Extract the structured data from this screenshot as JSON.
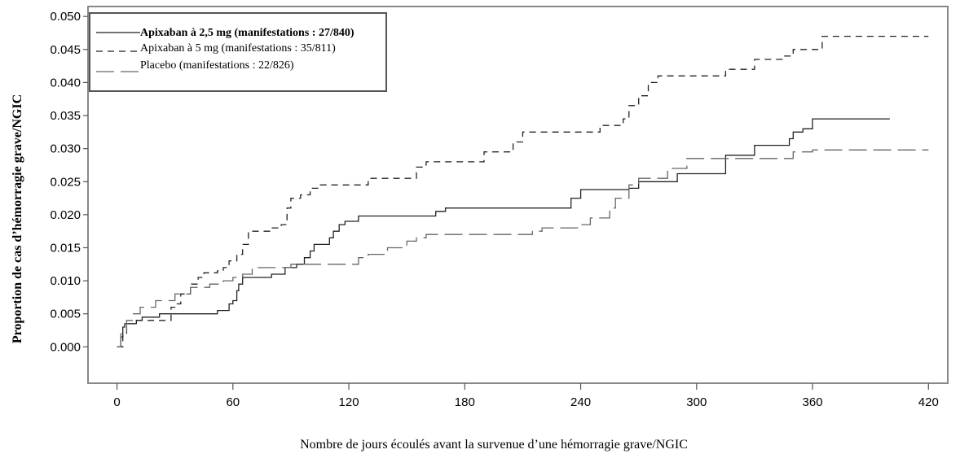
{
  "chart_data": {
    "type": "line",
    "xlabel": "Nombre de jours écoulés avant la survenue d’une hémorragie grave/NGIC",
    "ylabel": "Proportion de cas d’hémorragie grave/NGIC",
    "xlim": [
      -15,
      430
    ],
    "ylim": [
      -0.0055,
      0.0515
    ],
    "x_ticks": [
      0,
      60,
      120,
      180,
      240,
      300,
      360,
      420
    ],
    "x_tick_labels": [
      "0",
      "60",
      "120",
      "180",
      "240",
      "300",
      "360",
      "420"
    ],
    "y_ticks": [
      0.0,
      0.005,
      0.01,
      0.015,
      0.02,
      0.025,
      0.03,
      0.035,
      0.04,
      0.045,
      0.05
    ],
    "y_tick_labels": [
      "0.000",
      "0.005",
      "0.010",
      "0.015",
      "0.020",
      "0.025",
      "0.030",
      "0.035",
      "0.040",
      "0.045",
      "0.050"
    ],
    "grid": false,
    "legend_position": "top-left",
    "series": [
      {
        "name": "Apixaban à 2,5 mg (manifestations : 27/840)",
        "style": "solid",
        "color": "#222222",
        "x": [
          0,
          2,
          3,
          4,
          8,
          10,
          13,
          22,
          50,
          52,
          58,
          60,
          62,
          63,
          65,
          70,
          72,
          74,
          80,
          85,
          87,
          93,
          97,
          100,
          102,
          105,
          110,
          112,
          115,
          118,
          125,
          165,
          170,
          175,
          235,
          240,
          255,
          260,
          262,
          265,
          270,
          275,
          280,
          290,
          300,
          305,
          310,
          315,
          320,
          325,
          330,
          340,
          345,
          348,
          350,
          355,
          360,
          400
        ],
        "y": [
          0,
          0.0015,
          0.003,
          0.0035,
          0.0035,
          0.004,
          0.0045,
          0.005,
          0.005,
          0.0055,
          0.0065,
          0.007,
          0.0085,
          0.0095,
          0.0105,
          0.0105,
          0.0105,
          0.0105,
          0.011,
          0.011,
          0.012,
          0.0125,
          0.0135,
          0.0145,
          0.0155,
          0.0155,
          0.0165,
          0.0175,
          0.0185,
          0.019,
          0.0198,
          0.0205,
          0.021,
          0.021,
          0.0225,
          0.0238,
          0.0238,
          0.0238,
          0.0238,
          0.024,
          0.025,
          0.025,
          0.025,
          0.0262,
          0.0262,
          0.0262,
          0.0262,
          0.029,
          0.029,
          0.029,
          0.0305,
          0.0305,
          0.0305,
          0.0315,
          0.0325,
          0.033,
          0.0345,
          0.0345
        ]
      },
      {
        "name": "Apixaban à 5 mg (manifestations : 35/811)",
        "style": "dashed",
        "color": "#222222",
        "x": [
          0,
          3,
          5,
          10,
          15,
          20,
          28,
          30,
          33,
          38,
          42,
          45,
          48,
          52,
          55,
          58,
          62,
          65,
          68,
          70,
          75,
          80,
          85,
          88,
          90,
          92,
          95,
          100,
          105,
          130,
          140,
          150,
          155,
          160,
          185,
          190,
          205,
          210,
          215,
          250,
          262,
          265,
          270,
          275,
          280,
          285,
          315,
          330,
          345,
          350,
          365,
          400,
          420
        ],
        "y": [
          0,
          0.002,
          0.0035,
          0.004,
          0.004,
          0.004,
          0.006,
          0.0065,
          0.008,
          0.0095,
          0.0105,
          0.0112,
          0.0112,
          0.0115,
          0.012,
          0.013,
          0.014,
          0.0155,
          0.0175,
          0.0175,
          0.0175,
          0.018,
          0.0185,
          0.021,
          0.0225,
          0.0225,
          0.023,
          0.024,
          0.0245,
          0.0255,
          0.0255,
          0.0255,
          0.0272,
          0.028,
          0.028,
          0.0295,
          0.031,
          0.0325,
          0.0325,
          0.0335,
          0.0345,
          0.0365,
          0.038,
          0.04,
          0.041,
          0.041,
          0.042,
          0.0435,
          0.044,
          0.045,
          0.047,
          0.047,
          0.047
        ]
      },
      {
        "name": "Placebo (manifestations : 22/826)",
        "style": "long-dashed",
        "color": "#666666",
        "x": [
          0,
          2,
          5,
          8,
          12,
          20,
          30,
          38,
          48,
          55,
          60,
          65,
          70,
          90,
          100,
          120,
          125,
          130,
          140,
          150,
          155,
          160,
          175,
          190,
          215,
          220,
          240,
          245,
          255,
          258,
          265,
          270,
          285,
          295,
          310,
          325,
          340,
          350,
          360,
          395,
          420
        ],
        "y": [
          0,
          0.002,
          0.004,
          0.005,
          0.006,
          0.007,
          0.008,
          0.009,
          0.0095,
          0.01,
          0.0105,
          0.011,
          0.012,
          0.0125,
          0.0125,
          0.0125,
          0.0135,
          0.014,
          0.015,
          0.016,
          0.0165,
          0.017,
          0.017,
          0.017,
          0.0175,
          0.018,
          0.0185,
          0.0195,
          0.021,
          0.0225,
          0.0245,
          0.0255,
          0.027,
          0.0285,
          0.0285,
          0.0285,
          0.0285,
          0.0295,
          0.0298,
          0.0298,
          0.0298
        ]
      }
    ]
  }
}
